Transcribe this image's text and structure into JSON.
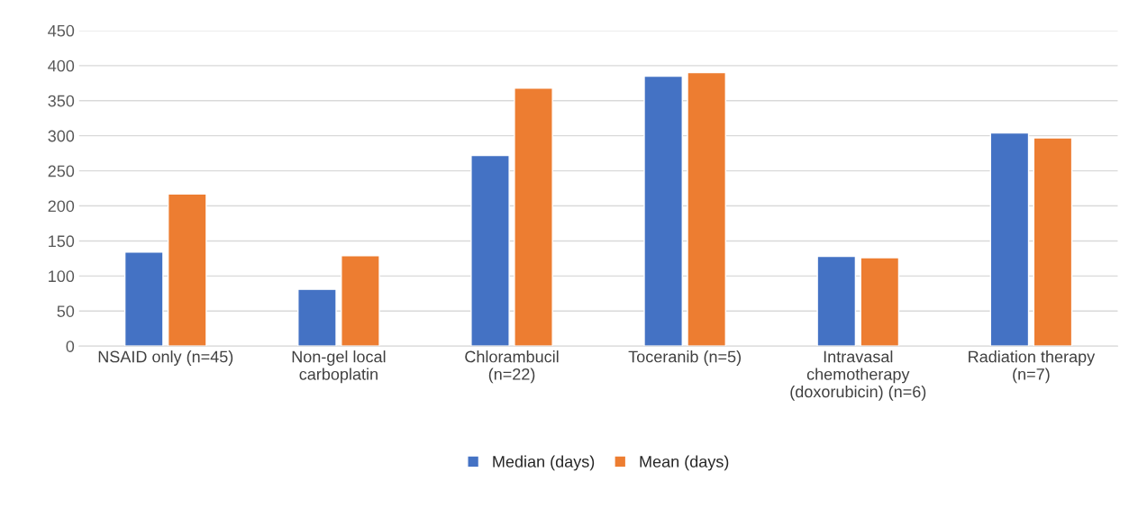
{
  "chart_data": {
    "type": "bar",
    "categories": [
      "NSAID only (n=45)",
      "Non-gel local\ncarboplatin",
      "Chlorambucil\n(n=22)",
      "Toceranib (n=5)",
      "Intravasal\nchemotherapy\n(doxorubicin) (n=6)",
      "Radiation therapy\n(n=7)"
    ],
    "series": [
      {
        "name": "Median (days)",
        "color": "#4472c4",
        "values": [
          134,
          81,
          272,
          385,
          128,
          304
        ]
      },
      {
        "name": "Mean (days)",
        "color": "#ed7d31",
        "values": [
          217,
          129,
          368,
          390,
          126,
          297
        ]
      }
    ],
    "ylim": [
      0,
      450
    ],
    "yticks": [
      0,
      50,
      100,
      150,
      200,
      250,
      300,
      350,
      400,
      450
    ],
    "grid": "y",
    "legend": "bottom"
  }
}
